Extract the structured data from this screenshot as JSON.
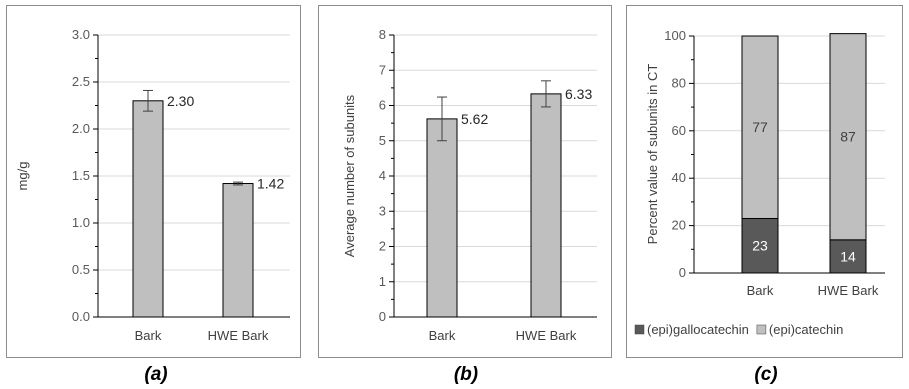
{
  "chart_data": [
    {
      "type": "bar",
      "categories": [
        "Bark",
        "HWE Bark"
      ],
      "values": [
        2.3,
        1.42
      ],
      "error": [
        0.11,
        0.015
      ],
      "data_labels": [
        "2.30",
        "1.42"
      ],
      "ylabel": "mg/g",
      "ylim": [
        0,
        3.0
      ],
      "yticks": [
        "0.0",
        "0.5",
        "1.0",
        "1.5",
        "2.0",
        "2.5",
        "3.0"
      ],
      "grid": true,
      "caption": "(a)"
    },
    {
      "type": "bar",
      "categories": [
        "Bark",
        "HWE Bark"
      ],
      "values": [
        5.62,
        6.33
      ],
      "error": [
        0.62,
        0.37
      ],
      "data_labels": [
        "5.62",
        "6.33"
      ],
      "ylabel": "Average number of subunits",
      "ylim": [
        0,
        8
      ],
      "yticks": [
        "0",
        "1",
        "2",
        "3",
        "4",
        "5",
        "6",
        "7",
        "8"
      ],
      "grid": true,
      "caption": "(b)"
    },
    {
      "type": "bar",
      "stacked": true,
      "categories": [
        "Bark",
        "HWE Bark"
      ],
      "series": [
        {
          "name": "(epi)gallocatechin",
          "values": [
            23,
            14
          ],
          "color": "#595959"
        },
        {
          "name": "(epi)catechin",
          "values": [
            77,
            87
          ],
          "color": "#bfbfbf"
        }
      ],
      "ylabel": "Percent value of subunits in CT",
      "ylim": [
        0,
        100
      ],
      "yticks": [
        "0",
        "20",
        "40",
        "60",
        "80",
        "100"
      ],
      "grid": true,
      "legend": "bottom",
      "caption": "(c)"
    }
  ]
}
